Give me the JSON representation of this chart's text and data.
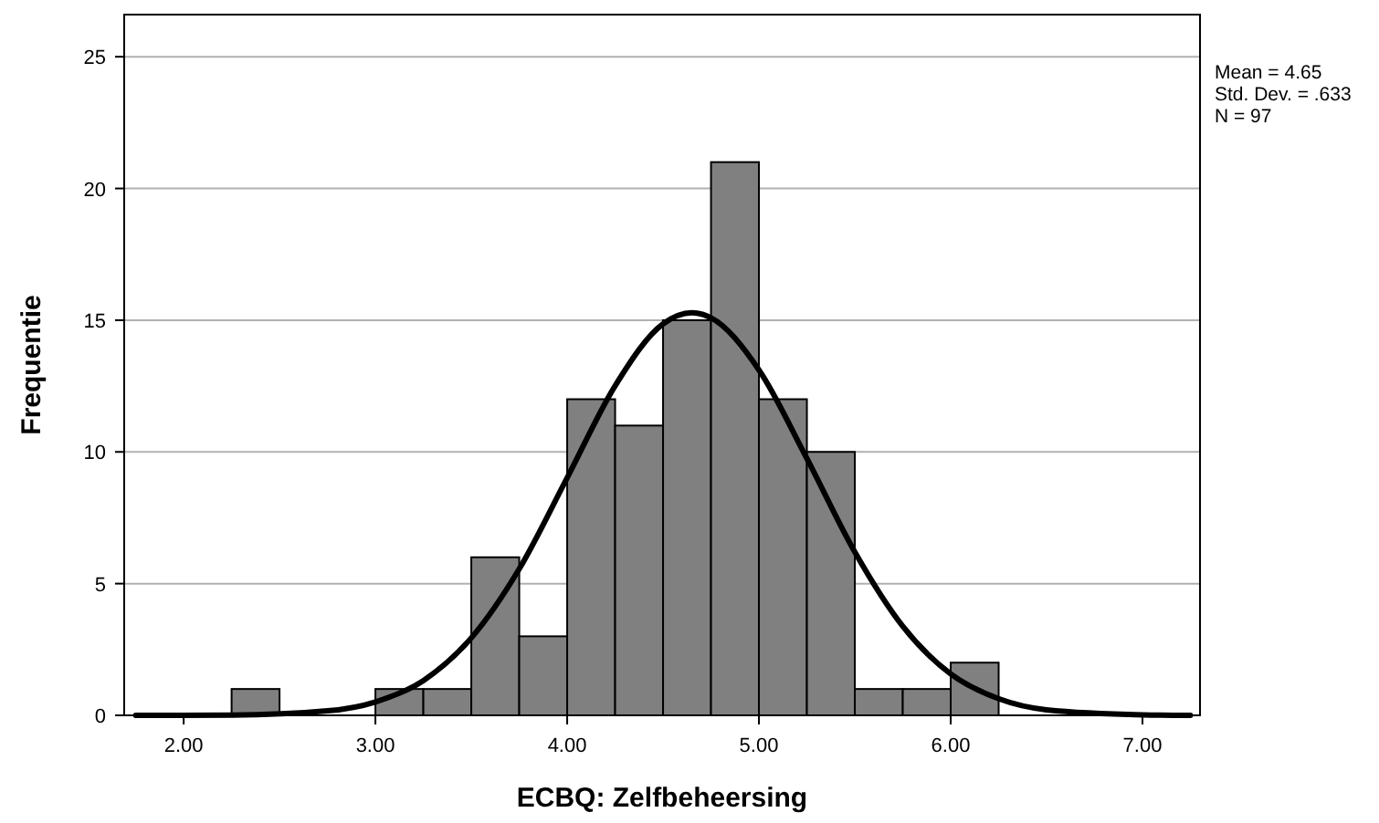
{
  "chart_data": {
    "type": "histogram",
    "xlabel": "ECBQ: Zelfbeheersing",
    "ylabel": "Frequentie",
    "bins": [
      2.25,
      2.5,
      2.75,
      3.0,
      3.25,
      3.5,
      3.75,
      4.0,
      4.25,
      4.5,
      4.75,
      5.0,
      5.25,
      5.5,
      5.75,
      6.0,
      6.25
    ],
    "values": [
      1,
      0,
      0,
      1,
      1,
      6,
      3,
      12,
      11,
      15,
      21,
      12,
      10,
      1,
      1,
      2
    ],
    "color": "#808080",
    "series": [
      {
        "type": "line",
        "color": "#000000",
        "x": [
          1.75,
          2.25,
          2.75,
          3.0,
          3.25,
          3.5,
          3.75,
          4.0,
          4.25,
          4.5,
          4.65,
          4.75,
          5.0,
          5.25,
          5.5,
          5.75,
          6.0,
          6.25,
          6.5,
          7.0,
          7.25
        ],
        "values": [
          0,
          0.01,
          0.17,
          0.51,
          1.32,
          2.94,
          5.56,
          9.02,
          12.51,
          14.86,
          15.28,
          15.09,
          13.11,
          9.75,
          6.2,
          3.38,
          1.57,
          0.63,
          0.21,
          0.02,
          0
        ]
      }
    ],
    "xlim": [
      1.69,
      7.3
    ],
    "ylim": [
      0,
      26.6
    ],
    "xticks": [
      {
        "value": 2,
        "label": "2.00"
      },
      {
        "value": 3,
        "label": "3.00"
      },
      {
        "value": 4,
        "label": "4.00"
      },
      {
        "value": 5,
        "label": "5.00"
      },
      {
        "value": 6,
        "label": "6.00"
      },
      {
        "value": 7,
        "label": "7.00"
      }
    ],
    "yticks": [
      0,
      5,
      10,
      15,
      20,
      25
    ],
    "grid": "y",
    "line_style": "solid",
    "annotations": [
      "Mean = 4.65",
      "Std. Dev. = .633",
      "N = 97"
    ]
  }
}
